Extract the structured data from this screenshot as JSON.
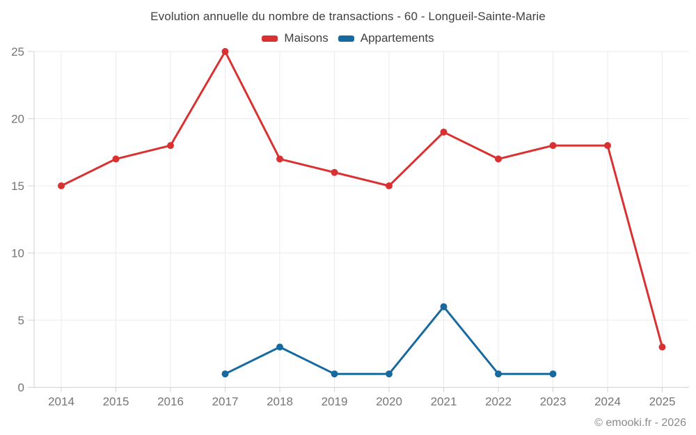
{
  "title": "Evolution annuelle du nombre de transactions - 60 - Longueil-Sainte-Marie",
  "footer": "© emooki.fr - 2026",
  "colors": {
    "maisons": "#d93031",
    "appartements": "#176a9f",
    "grid": "#ebebeb",
    "axis": "#d2d2d2",
    "tick_text": "#757575",
    "background": "#ffffff"
  },
  "chart_data": {
    "type": "line",
    "title": "Evolution annuelle du nombre de transactions - 60 - Longueil-Sainte-Marie",
    "categories": [
      "2014",
      "2015",
      "2016",
      "2017",
      "2018",
      "2019",
      "2020",
      "2021",
      "2022",
      "2023",
      "2024",
      "2025"
    ],
    "series": [
      {
        "name": "Maisons",
        "color": "#d93031",
        "values": [
          15,
          17,
          18,
          25,
          17,
          16,
          15,
          19,
          17,
          18,
          18,
          3
        ]
      },
      {
        "name": "Appartements",
        "color": "#176a9f",
        "values": [
          null,
          null,
          null,
          1,
          3,
          1,
          1,
          6,
          1,
          1,
          null,
          null
        ]
      }
    ],
    "xlabel": "",
    "ylabel": "",
    "ylim": [
      0,
      25
    ],
    "yticks": [
      0,
      5,
      10,
      15,
      20,
      25
    ],
    "grid": true,
    "legend_position": "top"
  }
}
